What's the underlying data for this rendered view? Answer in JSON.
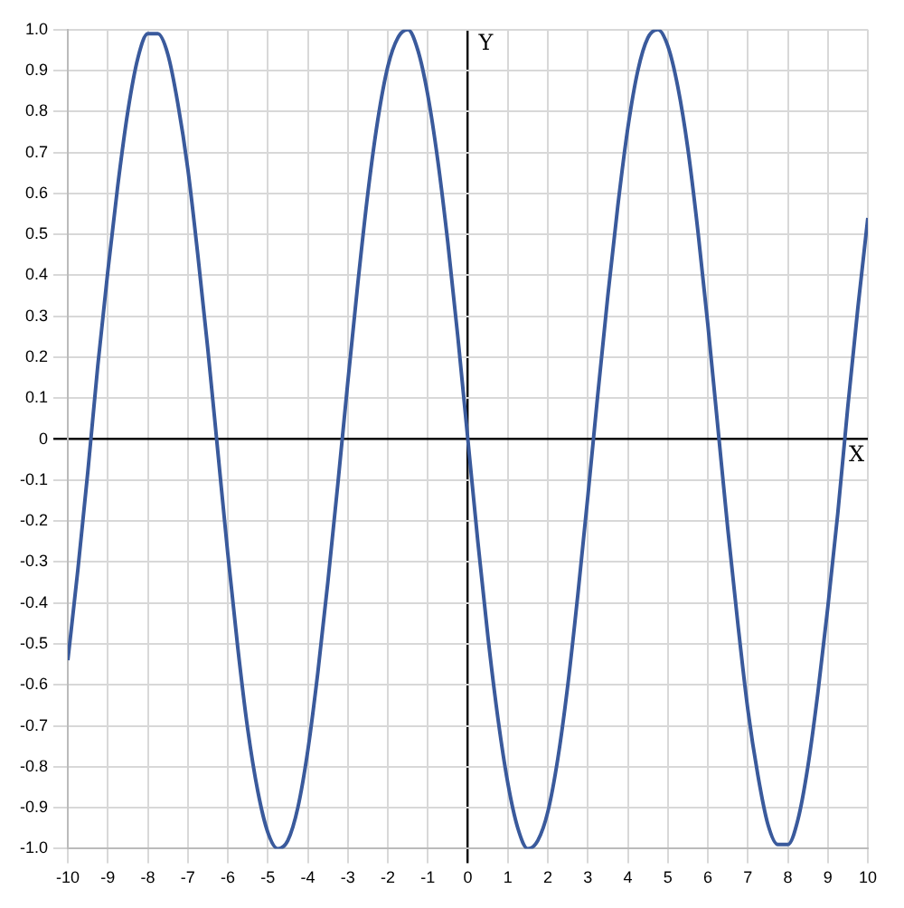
{
  "chart_data": {
    "type": "line",
    "xlabel": "X",
    "ylabel": "Y",
    "x": [
      -10,
      -9.75,
      -9.5,
      -9.25,
      -9,
      -8.75,
      -8.5,
      -8.25,
      -8,
      -7.75,
      -7.5,
      -7.25,
      -7,
      -6.75,
      -6.5,
      -6.25,
      -6,
      -5.75,
      -5.5,
      -5.25,
      -5,
      -4.75,
      -4.5,
      -4.25,
      -4,
      -3.75,
      -3.5,
      -3.25,
      -3,
      -2.75,
      -2.5,
      -2.25,
      -2,
      -1.75,
      -1.5,
      -1.25,
      -1,
      -0.75,
      -0.5,
      -0.25,
      0,
      0.25,
      0.5,
      0.75,
      1,
      1.25,
      1.5,
      1.75,
      2,
      2.25,
      2.5,
      2.75,
      3,
      3.25,
      3.5,
      3.75,
      4,
      4.25,
      4.5,
      4.75,
      5,
      5.25,
      5.5,
      5.75,
      6,
      6.25,
      6.5,
      6.75,
      7,
      7.25,
      7.5,
      7.75,
      8,
      8.25,
      8.5,
      8.75,
      9,
      9.25,
      9.5,
      9.75,
      10
    ],
    "series": [
      {
        "color": "#3a5a9c",
        "values": [
          -0.54,
          -0.32,
          -0.08,
          0.18,
          0.41,
          0.62,
          0.8,
          0.93,
          0.99,
          0.99,
          0.94,
          0.82,
          0.66,
          0.45,
          0.22,
          -0.03,
          -0.28,
          -0.51,
          -0.71,
          -0.86,
          -0.96,
          -1.0,
          -0.98,
          -0.9,
          -0.76,
          -0.57,
          -0.35,
          -0.11,
          0.14,
          0.38,
          0.6,
          0.78,
          0.91,
          0.98,
          1.0,
          0.95,
          0.84,
          0.68,
          0.48,
          0.25,
          0,
          -0.25,
          -0.48,
          -0.68,
          -0.84,
          -0.95,
          -1.0,
          -0.98,
          -0.91,
          -0.78,
          -0.6,
          -0.38,
          -0.14,
          0.11,
          0.35,
          0.57,
          0.76,
          0.9,
          0.98,
          1.0,
          0.96,
          0.86,
          0.71,
          0.51,
          0.28,
          0.03,
          -0.22,
          -0.45,
          -0.66,
          -0.82,
          -0.94,
          -0.99,
          -0.99,
          -0.93,
          -0.8,
          -0.62,
          -0.41,
          -0.18,
          0.08,
          0.32,
          0.54
        ]
      }
    ],
    "xlim": [
      -10,
      10
    ],
    "xticks": [
      -10,
      -9,
      -8,
      -7,
      -6,
      -5,
      -4,
      -3,
      -2,
      -1,
      0,
      1,
      2,
      3,
      4,
      5,
      6,
      7,
      8,
      9,
      10
    ],
    "ylim": [
      -1,
      1
    ],
    "yticks": [
      {
        "value": -1,
        "label": "-1.0"
      },
      -0.9,
      -0.8,
      -0.7,
      -0.6,
      -0.5,
      -0.4,
      -0.3,
      -0.2,
      -0.1,
      0,
      0.1,
      0.2,
      0.3,
      0.4,
      0.5,
      0.6,
      0.7,
      0.8,
      0.9,
      {
        "value": 1,
        "label": "1.0"
      }
    ],
    "grid": true,
    "legend": false,
    "marker": "none",
    "line_style": "solid"
  }
}
